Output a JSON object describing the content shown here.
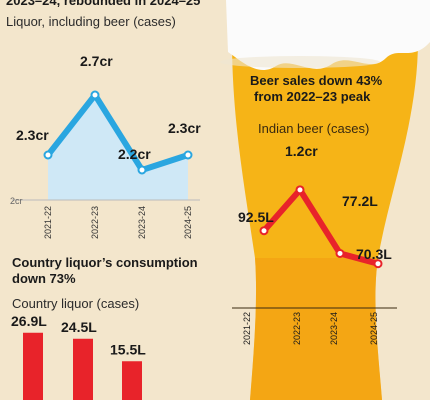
{
  "headline_partial": "2023–24, rebounded in 2024–25",
  "liquor_subtitle": "Liquor, including beer (cases)",
  "country_headline_line1": "Country liquor’s consumption",
  "country_headline_line2": "down 73%",
  "country_subtitle": "Country liquor (cases)",
  "beer_headline_line1": "Beer sales down 43%",
  "beer_headline_line2": "from 2022–23 peak",
  "beer_subtitle": "Indian beer (cases)",
  "colors": {
    "liquor_line": "#2aa6e0",
    "liquor_fill": "#cfe8f6",
    "beer_line": "#e8232a",
    "country_bar": "#e8232a",
    "glass_beer": "#f6b417",
    "glass_foam": "#fbfbfb"
  },
  "chart_data": [
    {
      "type": "area",
      "title": "",
      "categories": [
        "2021-22",
        "2022-23",
        "2023-24",
        "2024-25"
      ],
      "series": [
        {
          "values": [
            2.3,
            2.7,
            2.2,
            2.3
          ],
          "labels": [
            "2.3cr",
            "2.7cr",
            "2.2cr",
            "2.3cr"
          ]
        }
      ],
      "y_axis_label": "2cr",
      "ylim": [
        2.0,
        2.8
      ],
      "grid": false
    },
    {
      "type": "line",
      "title": "",
      "categories": [
        "2021-22",
        "2022-23",
        "2023-24",
        "2024-25"
      ],
      "series": [
        {
          "values": [
            92.5,
            120,
            77.2,
            70.3
          ],
          "labels": [
            "92.5L",
            "1.2cr",
            "77.2L",
            "70.3L"
          ]
        }
      ],
      "ylim": [
        60,
        130
      ],
      "grid": false
    },
    {
      "type": "bar",
      "title": "",
      "categories": [
        "",
        "",
        ""
      ],
      "series": [
        {
          "values": [
            26.9,
            24.5,
            15.5
          ],
          "labels": [
            "26.9L",
            "24.5L",
            "15.5L"
          ]
        }
      ],
      "ylim": [
        0,
        32
      ],
      "grid": false
    }
  ]
}
